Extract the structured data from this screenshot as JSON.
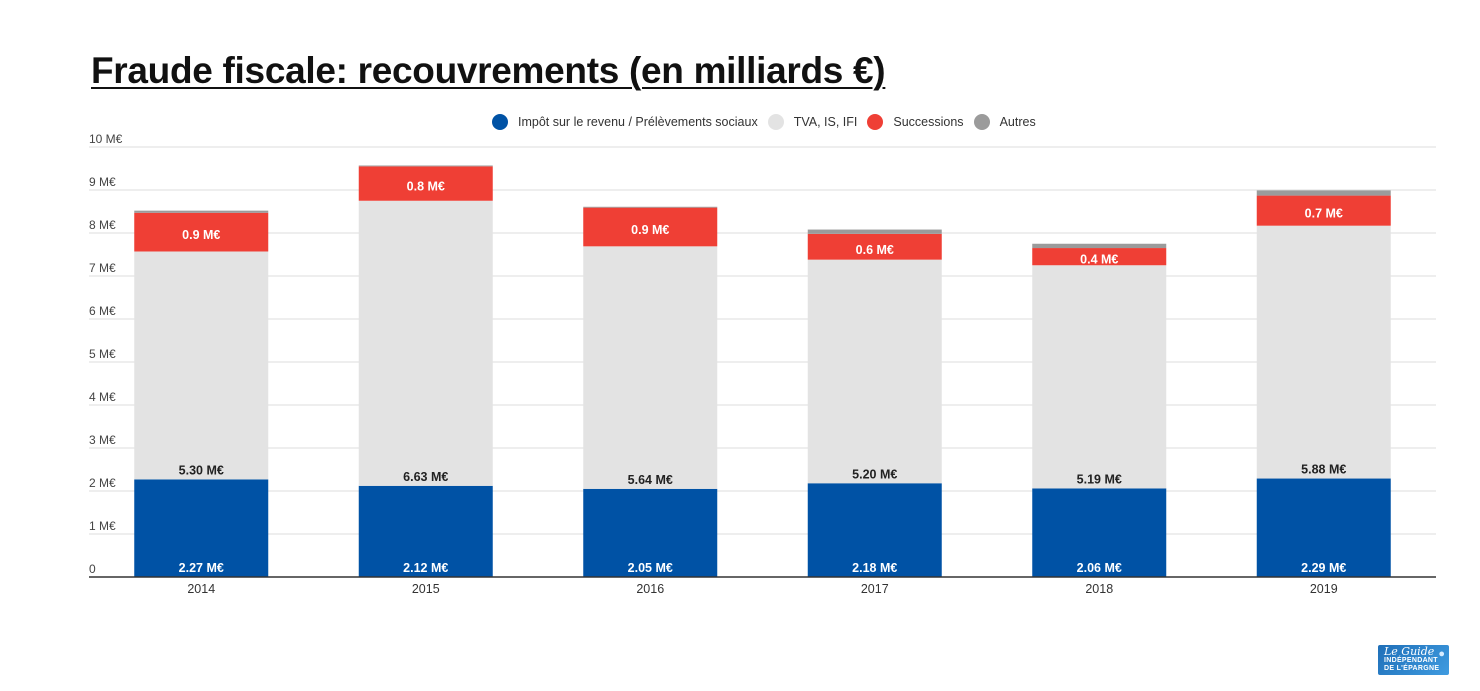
{
  "chart_data": {
    "type": "bar",
    "stacked": true,
    "title": "Fraude fiscale: recouvrements (en milliards €)",
    "categories": [
      "2014",
      "2015",
      "2016",
      "2017",
      "2018",
      "2019"
    ],
    "series": [
      {
        "name": "Impôt sur le revenu / Prélèvements sociaux",
        "color": "#0052a5",
        "values": [
          2.27,
          2.12,
          2.05,
          2.18,
          2.06,
          2.29
        ],
        "labels": [
          "2.27 M€",
          "2.12 M€",
          "2.05 M€",
          "2.18 M€",
          "2.06 M€",
          "2.29 M€"
        ]
      },
      {
        "name": "TVA, IS, IFI",
        "color": "#e3e3e3",
        "values": [
          5.3,
          6.63,
          5.64,
          5.2,
          5.19,
          5.88
        ],
        "labels": [
          "5.30 M€",
          "6.63 M€",
          "5.64 M€",
          "5.20 M€",
          "5.19 M€",
          "5.88 M€"
        ]
      },
      {
        "name": "Successions",
        "color": "#ef3f35",
        "values": [
          0.9,
          0.8,
          0.9,
          0.6,
          0.4,
          0.7
        ],
        "labels": [
          "0.9 M€",
          "0.8 M€",
          "0.9 M€",
          "0.6 M€",
          "0.4 M€",
          "0.7 M€"
        ]
      },
      {
        "name": "Autres",
        "color": "#9b9b9b",
        "values": [
          0.05,
          0.02,
          0.02,
          0.1,
          0.1,
          0.12
        ]
      }
    ],
    "yticks": [
      "0",
      "1 M€",
      "2 M€",
      "3 M€",
      "4 M€",
      "5 M€",
      "6 M€",
      "7 M€",
      "8 M€",
      "9 M€",
      "10 M€"
    ],
    "ylim": [
      0,
      10
    ],
    "xlabel": "",
    "ylabel": "",
    "grid": true,
    "legend_position": "top-center"
  },
  "logo": {
    "line1": "Le Guide",
    "line2": "INDÉPENDANT DE L'ÉPARGNE",
    "icon": "coin-icon"
  }
}
